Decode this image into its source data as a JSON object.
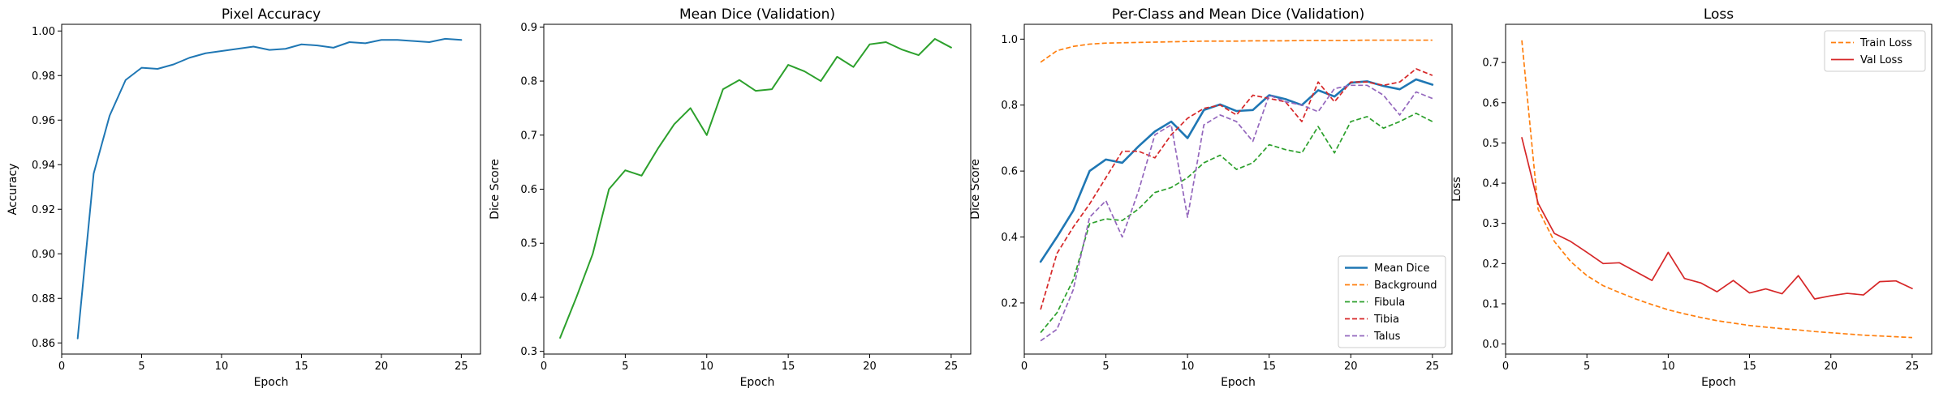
{
  "chart_data": [
    {
      "type": "line",
      "title": "Pixel Accuracy",
      "xlabel": "Epoch",
      "ylabel": "Accuracy",
      "xlim": [
        0,
        26.2
      ],
      "ylim": [
        0.855,
        1.003
      ],
      "xticks": [
        0,
        5,
        10,
        15,
        20,
        25
      ],
      "yticks": [
        0.86,
        0.88,
        0.9,
        0.92,
        0.94,
        0.96,
        0.98,
        1.0
      ],
      "ytick_labels": [
        "0.86",
        "0.88",
        "0.90",
        "0.92",
        "0.94",
        "0.96",
        "0.98",
        "1.00"
      ],
      "grid": false,
      "x": [
        1,
        2,
        3,
        4,
        5,
        6,
        7,
        8,
        9,
        10,
        11,
        12,
        13,
        14,
        15,
        16,
        17,
        18,
        19,
        20,
        21,
        22,
        23,
        24,
        25
      ],
      "series": [
        {
          "color": "#1f77b4",
          "dash": "solid",
          "width": 2,
          "values": [
            0.862,
            0.936,
            0.962,
            0.978,
            0.9835,
            0.983,
            0.985,
            0.988,
            0.99,
            0.991,
            0.992,
            0.993,
            0.9915,
            0.992,
            0.994,
            0.9935,
            0.9925,
            0.995,
            0.9945,
            0.996,
            0.996,
            0.9955,
            0.995,
            0.9965,
            0.996
          ]
        }
      ]
    },
    {
      "type": "line",
      "title": "Mean Dice (Validation)",
      "xlabel": "Epoch",
      "ylabel": "Dice Score",
      "xlim": [
        0,
        26.2
      ],
      "ylim": [
        0.295,
        0.905
      ],
      "xticks": [
        0,
        5,
        10,
        15,
        20,
        25
      ],
      "yticks": [
        0.3,
        0.4,
        0.5,
        0.6,
        0.7,
        0.8,
        0.9
      ],
      "ytick_labels": [
        "0.3",
        "0.4",
        "0.5",
        "0.6",
        "0.7",
        "0.8",
        "0.9"
      ],
      "grid": false,
      "x": [
        1,
        2,
        3,
        4,
        5,
        6,
        7,
        8,
        9,
        10,
        11,
        12,
        13,
        14,
        15,
        16,
        17,
        18,
        19,
        20,
        21,
        22,
        23,
        24,
        25
      ],
      "series": [
        {
          "color": "#2ca02c",
          "dash": "solid",
          "width": 2,
          "values": [
            0.325,
            0.4,
            0.48,
            0.6,
            0.635,
            0.625,
            0.675,
            0.72,
            0.75,
            0.7,
            0.785,
            0.802,
            0.782,
            0.785,
            0.83,
            0.818,
            0.8,
            0.845,
            0.826,
            0.868,
            0.872,
            0.858,
            0.848,
            0.878,
            0.862
          ]
        }
      ]
    },
    {
      "type": "line",
      "title": "Per-Class and Mean Dice (Validation)",
      "xlabel": "Epoch",
      "ylabel": "Dice Score",
      "xlim": [
        0,
        26.2
      ],
      "ylim": [
        0.045,
        1.045
      ],
      "xticks": [
        0,
        5,
        10,
        15,
        20,
        25
      ],
      "yticks": [
        0.2,
        0.4,
        0.6,
        0.8,
        1.0
      ],
      "ytick_labels": [
        "0.2",
        "0.4",
        "0.6",
        "0.8",
        "1.0"
      ],
      "grid": false,
      "legend": "bottom-right",
      "x": [
        1,
        2,
        3,
        4,
        5,
        6,
        7,
        8,
        9,
        10,
        11,
        12,
        13,
        14,
        15,
        16,
        17,
        18,
        19,
        20,
        21,
        22,
        23,
        24,
        25
      ],
      "series": [
        {
          "name": "Mean Dice",
          "color": "#1f77b4",
          "dash": "solid",
          "width": 2.6,
          "values": [
            0.325,
            0.4,
            0.48,
            0.6,
            0.635,
            0.625,
            0.675,
            0.72,
            0.75,
            0.7,
            0.785,
            0.802,
            0.782,
            0.785,
            0.83,
            0.818,
            0.8,
            0.845,
            0.826,
            0.868,
            0.872,
            0.858,
            0.848,
            0.878,
            0.862
          ]
        },
        {
          "name": "Background",
          "color": "#ff7f0e",
          "dash": "dashed",
          "width": 1.7,
          "values": [
            0.93,
            0.965,
            0.978,
            0.985,
            0.988,
            0.989,
            0.99,
            0.991,
            0.992,
            0.993,
            0.994,
            0.994,
            0.994,
            0.995,
            0.995,
            0.995,
            0.996,
            0.996,
            0.996,
            0.996,
            0.997,
            0.997,
            0.997,
            0.997,
            0.997
          ]
        },
        {
          "name": "Fibula",
          "color": "#2ca02c",
          "dash": "dashed",
          "width": 1.7,
          "values": [
            0.11,
            0.17,
            0.27,
            0.44,
            0.455,
            0.45,
            0.485,
            0.535,
            0.55,
            0.58,
            0.625,
            0.648,
            0.605,
            0.625,
            0.68,
            0.665,
            0.655,
            0.735,
            0.655,
            0.75,
            0.765,
            0.73,
            0.75,
            0.775,
            0.75
          ]
        },
        {
          "name": "Tibia",
          "color": "#d62728",
          "dash": "dashed",
          "width": 1.7,
          "values": [
            0.18,
            0.35,
            0.43,
            0.5,
            0.58,
            0.66,
            0.66,
            0.64,
            0.71,
            0.76,
            0.79,
            0.8,
            0.77,
            0.83,
            0.82,
            0.81,
            0.75,
            0.87,
            0.81,
            0.87,
            0.87,
            0.86,
            0.87,
            0.91,
            0.89
          ]
        },
        {
          "name": "Talus",
          "color": "#9467bd",
          "dash": "dashed",
          "width": 1.7,
          "values": [
            0.085,
            0.12,
            0.24,
            0.46,
            0.51,
            0.4,
            0.54,
            0.71,
            0.74,
            0.46,
            0.74,
            0.77,
            0.75,
            0.69,
            0.83,
            0.81,
            0.8,
            0.78,
            0.85,
            0.86,
            0.86,
            0.83,
            0.77,
            0.84,
            0.82
          ]
        }
      ]
    },
    {
      "type": "line",
      "title": "Loss",
      "xlabel": "Epoch",
      "ylabel": "Loss",
      "xlim": [
        0,
        26.2
      ],
      "ylim": [
        -0.025,
        0.795
      ],
      "xticks": [
        0,
        5,
        10,
        15,
        20,
        25
      ],
      "yticks": [
        0.0,
        0.1,
        0.2,
        0.3,
        0.4,
        0.5,
        0.6,
        0.7
      ],
      "ytick_labels": [
        "0.0",
        "0.1",
        "0.2",
        "0.3",
        "0.4",
        "0.5",
        "0.6",
        "0.7"
      ],
      "grid": false,
      "legend": "top-right",
      "x": [
        1,
        2,
        3,
        4,
        5,
        6,
        7,
        8,
        9,
        10,
        11,
        12,
        13,
        14,
        15,
        16,
        17,
        18,
        19,
        20,
        21,
        22,
        23,
        24,
        25
      ],
      "series": [
        {
          "name": "Train Loss",
          "color": "#ff7f0e",
          "dash": "dashed",
          "width": 1.7,
          "values": [
            0.755,
            0.335,
            0.255,
            0.205,
            0.17,
            0.145,
            0.128,
            0.112,
            0.098,
            0.085,
            0.075,
            0.066,
            0.058,
            0.052,
            0.046,
            0.042,
            0.038,
            0.035,
            0.031,
            0.028,
            0.025,
            0.022,
            0.02,
            0.018,
            0.016
          ]
        },
        {
          "name": "Val Loss",
          "color": "#d62728",
          "dash": "solid",
          "width": 1.7,
          "values": [
            0.513,
            0.35,
            0.275,
            0.255,
            0.228,
            0.2,
            0.202,
            0.18,
            0.158,
            0.228,
            0.163,
            0.152,
            0.13,
            0.158,
            0.127,
            0.137,
            0.125,
            0.17,
            0.112,
            0.12,
            0.126,
            0.122,
            0.155,
            0.157,
            0.138
          ]
        }
      ]
    }
  ]
}
